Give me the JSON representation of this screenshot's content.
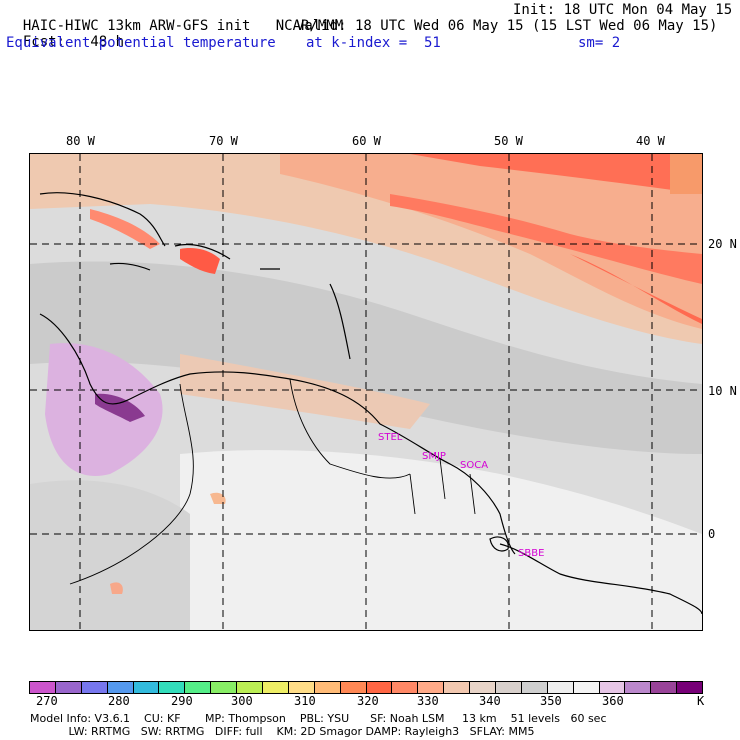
{
  "header": {
    "model": "HAIC-HIWC 13km ARW-GFS init",
    "org": "NCAR/MMM",
    "init": "Init: 18 UTC Mon 04 May 15",
    "fcst_label": "Fcst:",
    "fcst_value": "48 h",
    "valid": "Valid: 18 UTC Wed 06 May 15 (15 LST Wed 06 May 15)",
    "field": "Equivalent potential temperature",
    "level": "at k-index =  51",
    "smooth": "sm= 2"
  },
  "map": {
    "lon_labels": [
      "80 W",
      "70 W",
      "60 W",
      "50 W",
      "40 W"
    ],
    "lat_labels": [
      "20 N",
      "10 N",
      "0"
    ],
    "sites": [
      "STEL",
      "SMJP",
      "SOCA",
      "SBBE"
    ]
  },
  "colorbar": {
    "colors": [
      "#cc55cc",
      "#9966cc",
      "#7777ee",
      "#5599ee",
      "#33bbdd",
      "#33ddbb",
      "#55ee88",
      "#88ee66",
      "#bbee55",
      "#eeee66",
      "#ffdd88",
      "#ffbb77",
      "#ff8855",
      "#ff6644",
      "#ff8866",
      "#ffaa88",
      "#f2c8b0",
      "#e8d4c8",
      "#d8d0cc",
      "#cfcfcf",
      "#eeeeee",
      "#f4f4f4",
      "#e6c6e6",
      "#bb88cc",
      "#994499",
      "#770077"
    ],
    "ticks": [
      "270",
      "280",
      "290",
      "300",
      "310",
      "320",
      "330",
      "340",
      "350",
      "360"
    ],
    "unit": "K"
  },
  "footer": {
    "line1": "Model Info: V3.6.1    CU: KF       MP: Thompson    PBL: YSU      SF: Noah LSM     13 km    51 levels   60 sec",
    "line2": "           LW: RRTMG   SW: RRTMG   DIFF: full    KM: 2D Smagor DAMP: Rayleigh3   SFLAY: MM5"
  }
}
